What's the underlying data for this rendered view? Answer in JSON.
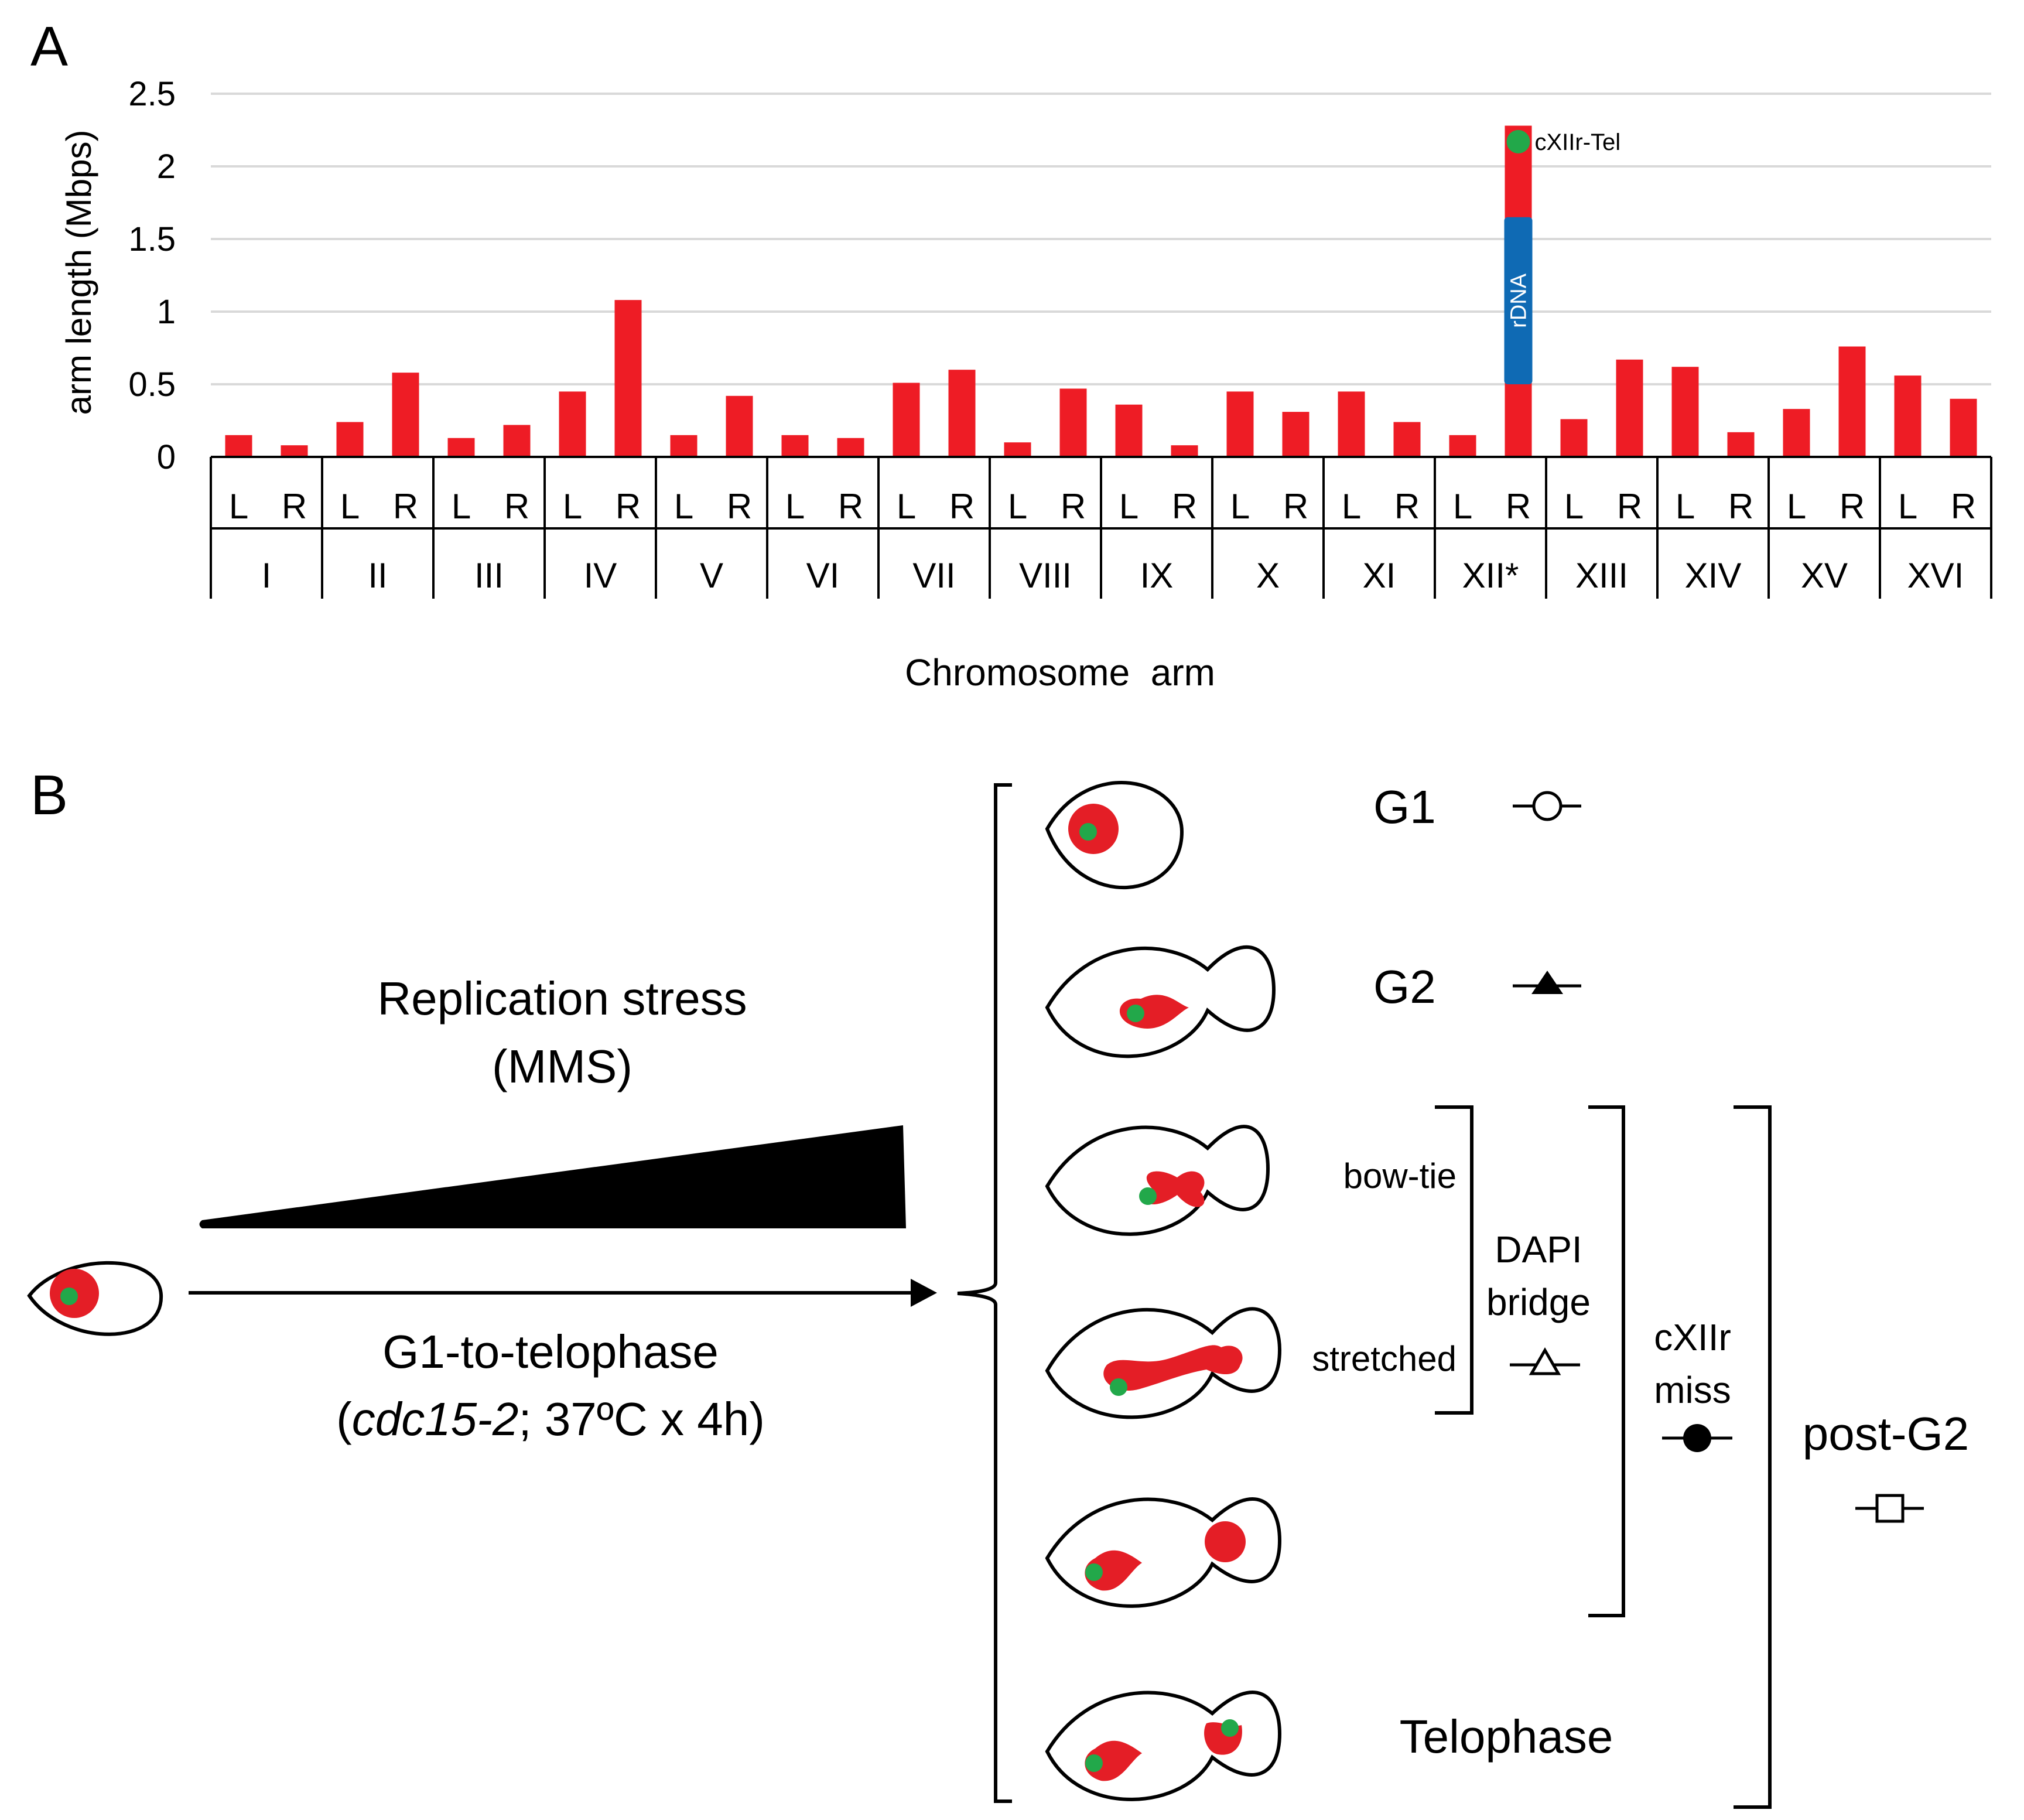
{
  "panels": {
    "a_label": "A",
    "b_label": "B"
  },
  "colors": {
    "bar": "#ee1c25",
    "rdna": "#0f6ab4",
    "marker": "#22a84a",
    "nucleus": "#e41e26"
  },
  "chart_data": {
    "type": "bar",
    "ylabel": "arm length (Mbps)",
    "xlabel": "Chromosome  arm",
    "ylim": [
      0,
      2.5
    ],
    "yticks": [
      "0",
      "0.5",
      "1",
      "1.5",
      "2",
      "2.5"
    ],
    "grid": true,
    "chromosomes": [
      "I",
      "II",
      "III",
      "IV",
      "V",
      "VI",
      "VII",
      "VIII",
      "IX",
      "X",
      "XI",
      "XII*",
      "XIII",
      "XIV",
      "XV",
      "XVI"
    ],
    "arm_labels": [
      "L",
      "R"
    ],
    "values": [
      [
        0.15,
        0.08
      ],
      [
        0.24,
        0.58
      ],
      [
        0.13,
        0.22
      ],
      [
        0.45,
        1.08
      ],
      [
        0.15,
        0.42
      ],
      [
        0.15,
        0.13
      ],
      [
        0.51,
        0.6
      ],
      [
        0.1,
        0.47
      ],
      [
        0.36,
        0.08
      ],
      [
        0.45,
        0.31
      ],
      [
        0.45,
        0.24
      ],
      [
        0.15,
        2.28
      ],
      [
        0.26,
        0.67
      ],
      [
        0.62,
        0.17
      ],
      [
        0.33,
        0.76
      ],
      [
        0.56,
        0.4
      ]
    ],
    "rdna_segment": {
      "chromosome": "XII*",
      "arm": "R",
      "start": 0.5,
      "end": 1.65,
      "label": "rDNA"
    },
    "annotation": {
      "chromosome": "XII*",
      "arm": "R",
      "value": 2.17,
      "label": "cXIIr-Tel"
    }
  },
  "panel_b": {
    "stress_line1": "Replication stress",
    "stress_line2": "(MMS)",
    "arrest_line1": "G1-to-telophase",
    "arrest_open": "(",
    "arrest_gene": "cdc15-2",
    "arrest_rest": "; 37ºC x 4h)",
    "g1": "G1",
    "g2": "G2",
    "bow_tie": "bow-tie",
    "stretched": "stretched",
    "dapi_line1": "DAPI",
    "dapi_line2": "bridge",
    "cxiir_line1": "cXIIr",
    "cxiir_line2": "miss",
    "post_g2": "post-G2",
    "telophase": "Telophase"
  }
}
